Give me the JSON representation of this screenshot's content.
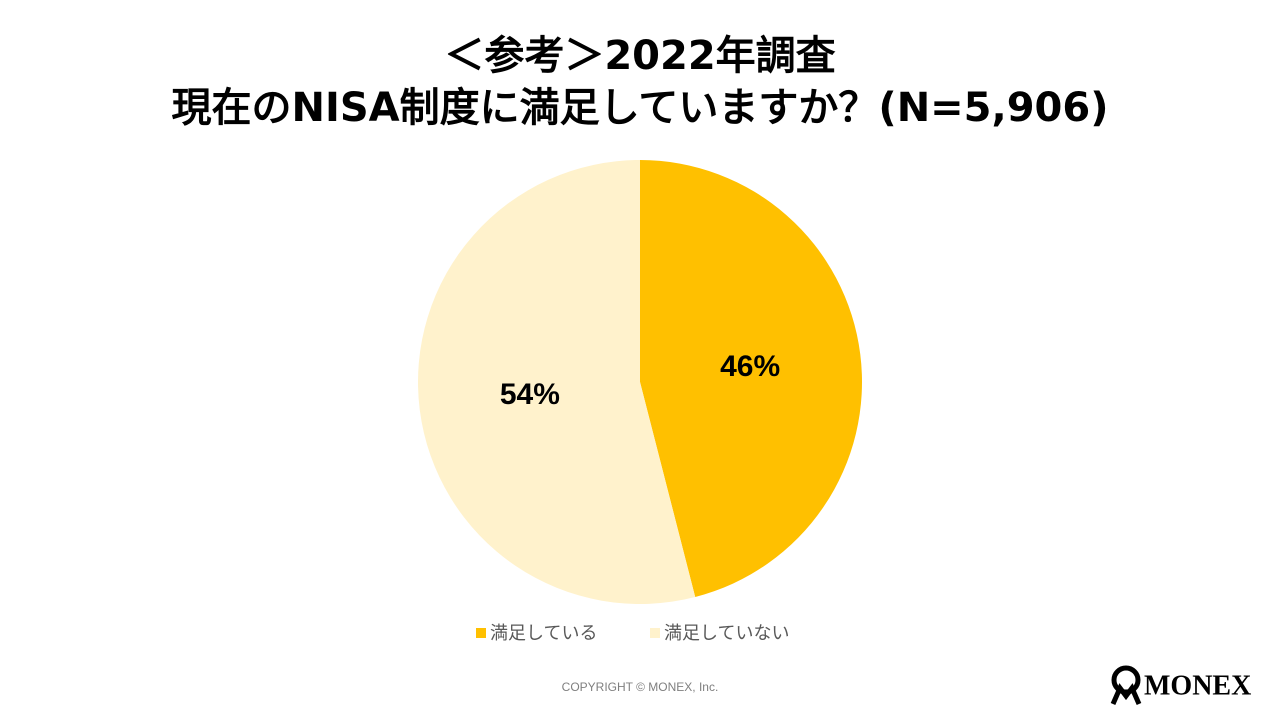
{
  "chart_data": {
    "type": "pie",
    "title": [
      "＜参考＞2022年調査",
      "現在のNISA制度に満足していますか？(N=5,906)"
    ],
    "categories": [
      "満足している",
      "満足していない"
    ],
    "values": [
      46,
      54
    ],
    "value_labels": [
      "46%",
      "54%"
    ],
    "colors": [
      "#FFC000",
      "#FFF2CC"
    ],
    "legend": "bottom"
  },
  "footer": {
    "copyright": "COPYRIGHT © MONEX, Inc.",
    "logo": "MONEX"
  }
}
